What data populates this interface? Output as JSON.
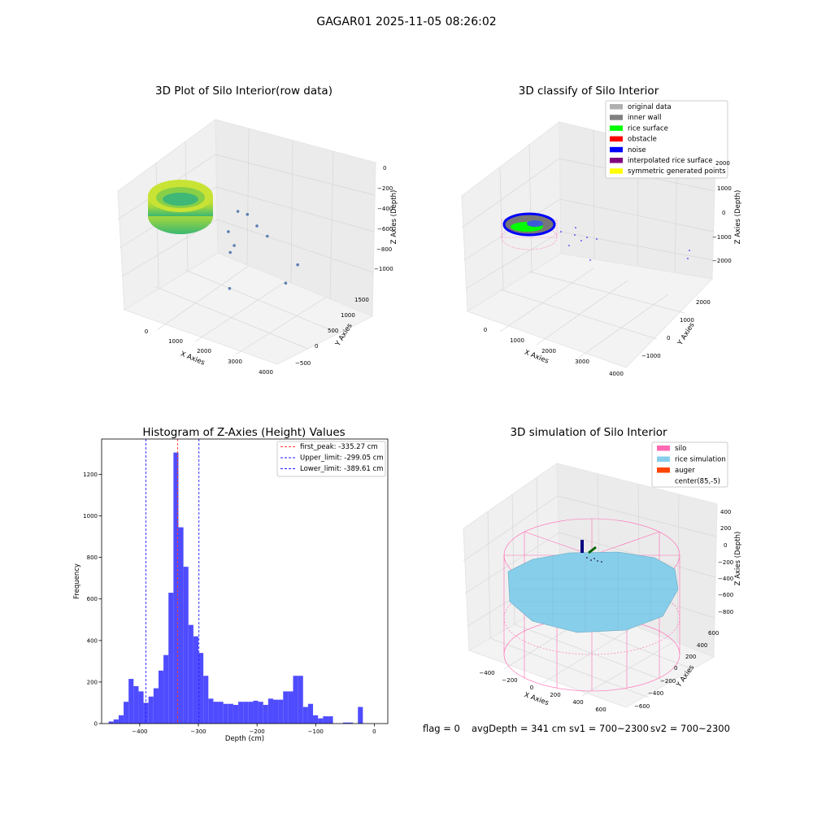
{
  "suptitle": "GAGAR01 2025-11-05 08:26:02",
  "footer": {
    "flag": "flag = 0",
    "avg_depth": "avgDepth = 341 cm",
    "sv1": "sv1 = 700~2300",
    "sv2": "sv2 = 700~2300"
  },
  "colors": {
    "hist_bar": "#4f4cff",
    "first_peak": "#ff3b30",
    "limits": "#1f1fff",
    "silo": "#ff69b4",
    "rice": "#87ceeb",
    "auger": "#ff4500",
    "inner_wall": "#808080",
    "rice_surface": "#00ff00",
    "noise": "#0000ff"
  },
  "chart_data": [
    {
      "type": "scatter",
      "projection": "3d",
      "title": "3D Plot of Silo Interior(row data)",
      "xlabel": "X Axies",
      "ylabel": "Y Axies",
      "zlabel": "Z Axies (Depth)",
      "x_ticks": [
        "0",
        "1000",
        "2000",
        "3000",
        "4000"
      ],
      "y_ticks": [
        "1500",
        "1000",
        "500",
        "0",
        "−500"
      ],
      "z_ticks": [
        "0",
        "−200",
        "−400",
        "−600",
        "−800",
        "−1000"
      ],
      "grid": true,
      "points": [
        {
          "x": 2900,
          "y": 1000,
          "z": -700
        },
        {
          "x": 3000,
          "y": 600,
          "z": -520
        },
        {
          "x": 2800,
          "y": 500,
          "z": -400
        },
        {
          "x": 2600,
          "y": 400,
          "z": -300
        },
        {
          "x": 2400,
          "y": 300,
          "z": -550
        },
        {
          "x": 2700,
          "y": 200,
          "z": -650
        },
        {
          "x": 2900,
          "y": -100,
          "z": -650
        },
        {
          "x": 4000,
          "y": 900,
          "z": -900
        },
        {
          "x": 4050,
          "y": 500,
          "z": -1000
        },
        {
          "x": 3100,
          "y": -300,
          "z": -950
        }
      ]
    },
    {
      "type": "scatter",
      "projection": "3d",
      "title": "3D classify of Silo Interior",
      "xlabel": "X Axies",
      "ylabel": "Y Axies",
      "zlabel": "Z Axies (Depth)",
      "x_ticks": [
        "0",
        "1000",
        "2000",
        "3000",
        "4000"
      ],
      "y_ticks": [
        "2000",
        "1000",
        "0",
        "−1000"
      ],
      "z_ticks": [
        "2000",
        "1000",
        "0",
        "−1000",
        "−2000"
      ],
      "grid": true,
      "legend_position": "top-right",
      "legend": [
        {
          "label": "original data",
          "color": "#b0b0b0"
        },
        {
          "label": "inner wall",
          "color": "#808080"
        },
        {
          "label": "rice surface",
          "color": "#00ff00"
        },
        {
          "label": "obstacle",
          "color": "#ff0000"
        },
        {
          "label": "noise",
          "color": "#0000ff"
        },
        {
          "label": "interpolated rice surface",
          "color": "#800080"
        },
        {
          "label": "symmetric generated points",
          "color": "#ffff00"
        }
      ]
    },
    {
      "type": "bar",
      "title": "Histogram of Z-Axies (Height) Values",
      "xlabel": "Depth (cm)",
      "ylabel": "Frequency",
      "xlim": [
        -465,
        23
      ],
      "ylim": [
        0,
        1370
      ],
      "x_ticks": [
        -400,
        -300,
        -200,
        -100,
        0
      ],
      "x_tick_labels": [
        "−400",
        "−300",
        "−200",
        "−100",
        "0"
      ],
      "y_ticks": [
        0,
        200,
        400,
        600,
        800,
        1000,
        1200
      ],
      "bin_start": -453,
      "bin_width": 8.5,
      "values": [
        10,
        20,
        40,
        105,
        215,
        180,
        155,
        100,
        130,
        170,
        255,
        330,
        630,
        1305,
        945,
        755,
        475,
        420,
        340,
        230,
        120,
        105,
        105,
        95,
        95,
        90,
        105,
        105,
        105,
        110,
        105,
        90,
        120,
        115,
        115,
        155,
        155,
        230,
        230,
        80,
        95,
        40,
        25,
        35,
        35,
        0,
        0,
        5,
        5,
        0,
        80
      ],
      "legend_position": "top-right",
      "lines": [
        {
          "label": "first_peak: -335.27 cm",
          "x": -335.27,
          "color": "#ff3b30"
        },
        {
          "label": "Upper_limit: -299.05 cm",
          "x": -299.05,
          "color": "#1f1fff"
        },
        {
          "label": "Lower_limit: -389.61 cm",
          "x": -389.61,
          "color": "#1f1fff"
        }
      ]
    },
    {
      "type": "scatter",
      "projection": "3d",
      "title": "3D simulation of Silo Interior",
      "xlabel": "X Axies",
      "ylabel": "Y Axies",
      "zlabel": "Z Axies (Depth)",
      "x_ticks": [
        "−400",
        "−200",
        "0",
        "200",
        "400",
        "600"
      ],
      "y_ticks": [
        "600",
        "400",
        "200",
        "0",
        "−200",
        "−400",
        "−600"
      ],
      "z_ticks": [
        "400",
        "200",
        "0",
        "−200",
        "−400",
        "−600",
        "−800"
      ],
      "grid": true,
      "legend_position": "top-right",
      "legend": [
        {
          "label": "silo",
          "color": "#ff69b4"
        },
        {
          "label": "rice simulation",
          "color": "#87ceeb"
        },
        {
          "label": "auger",
          "color": "#ff4500"
        },
        {
          "label": "center(85,-5)",
          "color": ""
        }
      ]
    }
  ]
}
